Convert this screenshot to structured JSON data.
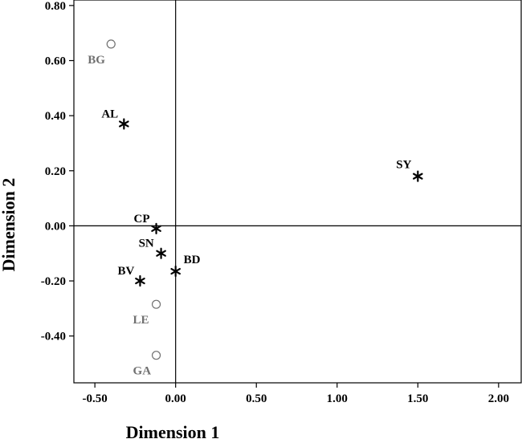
{
  "chart_data": {
    "type": "scatter",
    "xlabel": "Dimension 1",
    "ylabel": "Dimension 2",
    "xlim": [
      -0.63,
      2.14
    ],
    "ylim": [
      -0.57,
      0.82
    ],
    "x_ticks": [
      -0.5,
      0.0,
      0.5,
      1.0,
      1.5,
      2.0
    ],
    "x_tick_labels": [
      "-0.50",
      "0.00",
      "0.50",
      "1.00",
      "1.50",
      "2.00"
    ],
    "y_ticks": [
      -0.4,
      -0.2,
      0.0,
      0.2,
      0.4,
      0.6,
      0.8
    ],
    "y_tick_labels": [
      "-0.40",
      "-0.20",
      "0.00",
      "0.20",
      "0.40",
      "0.60",
      "0.80"
    ],
    "grid": false,
    "reference_lines": {
      "x": 0.0,
      "y": 0.0
    },
    "series": [
      {
        "marker": "asterisk",
        "color": "#000000",
        "points": [
          {
            "label": "AL",
            "x": -0.32,
            "y": 0.37
          },
          {
            "label": "SY",
            "x": 1.5,
            "y": 0.18
          },
          {
            "label": "CP",
            "x": -0.12,
            "y": -0.01
          },
          {
            "label": "SN",
            "x": -0.09,
            "y": -0.1
          },
          {
            "label": "BD",
            "x": 0.0,
            "y": -0.165
          },
          {
            "label": "BV",
            "x": -0.22,
            "y": -0.2
          }
        ]
      },
      {
        "marker": "open-circle",
        "color": "#707070",
        "points": [
          {
            "label": "BG",
            "x": -0.4,
            "y": 0.66
          },
          {
            "label": "LE",
            "x": -0.12,
            "y": -0.285
          },
          {
            "label": "GA",
            "x": -0.12,
            "y": -0.47
          }
        ]
      }
    ]
  }
}
